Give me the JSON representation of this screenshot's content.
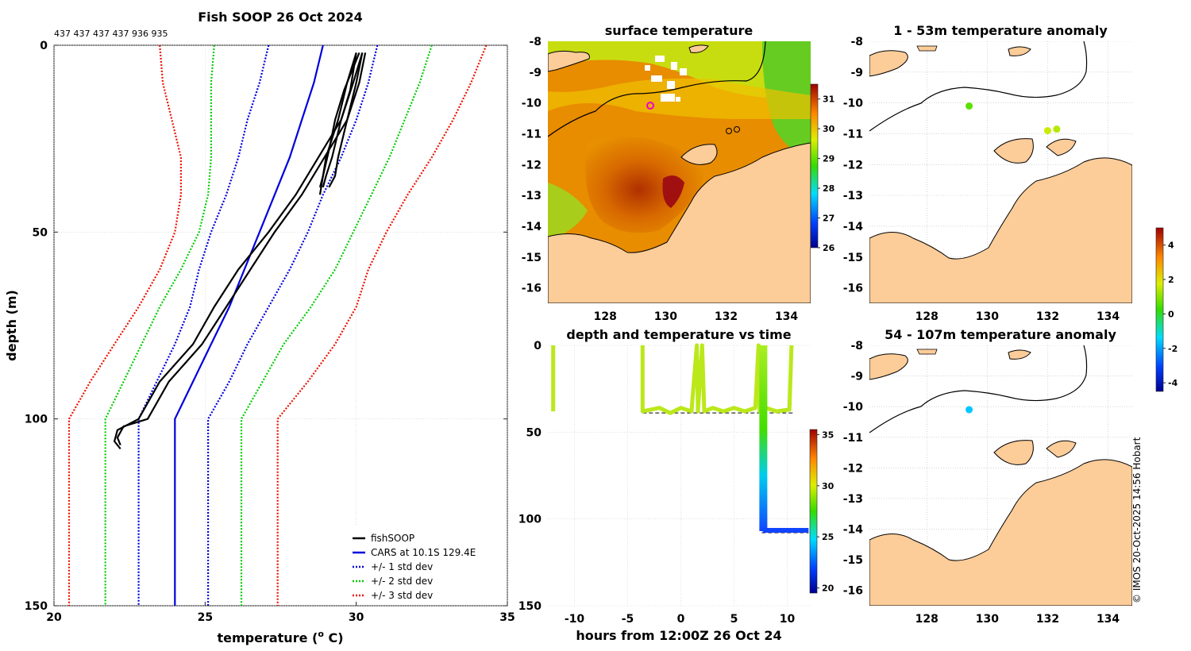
{
  "credit": "© IMOS 20-Oct-2025 14:56 Hobart",
  "chart_data": [
    {
      "type": "line",
      "title": "Fish SOOP 26 Oct 2024",
      "subtitle": "437 437 437 437 936 935",
      "xlabel": "temperature (",
      "xlabel_sup": "o",
      "xlabel_end": " C)",
      "ylabel": "depth (m)",
      "xlim": [
        20,
        35
      ],
      "ylim": [
        0,
        150
      ],
      "xticks": [
        "20",
        "25",
        "30",
        "35"
      ],
      "yticks": [
        "0",
        "50",
        "100",
        "150"
      ],
      "depths": [
        0,
        10,
        20,
        30,
        40,
        50,
        60,
        70,
        80,
        90,
        100,
        150
      ],
      "cars_mean": [
        28.9,
        28.6,
        28.2,
        27.8,
        27.3,
        26.8,
        26.3,
        25.8,
        25.2,
        24.6,
        24.0,
        24.0
      ],
      "std_lines": [
        {
          "name": "+1",
          "color": "#0000dd",
          "values": [
            30.7,
            30.4,
            30.0,
            29.5,
            28.9,
            28.4,
            27.8,
            27.1,
            26.4,
            25.8,
            25.1,
            25.1
          ]
        },
        {
          "name": "-1",
          "color": "#0000dd",
          "values": [
            27.1,
            26.8,
            26.4,
            26.1,
            25.7,
            25.2,
            24.8,
            24.5,
            24.0,
            23.4,
            22.8,
            22.8
          ]
        },
        {
          "name": "+2",
          "color": "#00cc00",
          "values": [
            32.5,
            32.1,
            31.6,
            31.1,
            30.5,
            29.9,
            29.3,
            28.5,
            27.6,
            26.9,
            26.2,
            26.2
          ]
        },
        {
          "name": "-2",
          "color": "#00cc00",
          "values": [
            25.3,
            25.2,
            25.2,
            25.2,
            25.1,
            24.8,
            24.2,
            23.5,
            22.9,
            22.3,
            21.7,
            21.7
          ]
        },
        {
          "name": "+3",
          "color": "#ee1100",
          "values": [
            34.3,
            33.8,
            33.2,
            32.5,
            31.7,
            31.0,
            30.4,
            30.0,
            29.3,
            28.4,
            27.4,
            27.4
          ]
        },
        {
          "name": "-3",
          "color": "#ee1100",
          "values": [
            23.5,
            23.6,
            23.9,
            24.2,
            24.2,
            24.0,
            23.5,
            22.8,
            22.0,
            21.2,
            20.5,
            20.5
          ]
        }
      ],
      "fishsoop_profiles": [
        {
          "depths": [
            2,
            10,
            20,
            30,
            35,
            38
          ],
          "temps": [
            30.2,
            29.9,
            29.5,
            29.2,
            29.0,
            28.9
          ]
        },
        {
          "depths": [
            2,
            10,
            20,
            30,
            35,
            38
          ],
          "temps": [
            30.0,
            29.7,
            29.4,
            29.0,
            28.9,
            28.8
          ]
        },
        {
          "depths": [
            2,
            10,
            20,
            30,
            35,
            38
          ],
          "temps": [
            30.3,
            30.1,
            29.7,
            29.4,
            29.3,
            29.1
          ]
        },
        {
          "depths": [
            2,
            12,
            20,
            28,
            35,
            40
          ],
          "temps": [
            30.1,
            29.6,
            29.3,
            29.1,
            28.9,
            28.8
          ]
        },
        {
          "depths": [
            2,
            10,
            20,
            40,
            50,
            60,
            70,
            80,
            90,
            100,
            102,
            105,
            107
          ],
          "temps": [
            30.2,
            30.0,
            29.7,
            28.2,
            27.3,
            26.5,
            25.7,
            24.9,
            23.8,
            23.1,
            22.3,
            22.1,
            22.2
          ]
        },
        {
          "depths": [
            2,
            12,
            20,
            40,
            50,
            60,
            70,
            80,
            90,
            100,
            103,
            106,
            108
          ],
          "temps": [
            30.0,
            29.8,
            29.5,
            28.0,
            27.1,
            26.1,
            25.3,
            24.6,
            23.5,
            22.8,
            22.1,
            22.0,
            22.2
          ]
        }
      ],
      "legend": [
        {
          "label": "fishSOOP",
          "color": "#000000",
          "style": "solid"
        },
        {
          "label": "CARS at 10.1S 129.4E",
          "color": "#0000dd",
          "style": "solid"
        },
        {
          "label": "+/- 1 std dev",
          "color": "#0000dd",
          "style": "dotted"
        },
        {
          "label": "+/- 2 std dev",
          "color": "#00cc00",
          "style": "dotted"
        },
        {
          "label": "+/- 3 std dev",
          "color": "#ee1100",
          "style": "dotted"
        }
      ]
    },
    {
      "type": "heatmap",
      "title": "surface temperature",
      "xticks": [
        "128",
        "130",
        "132",
        "134"
      ],
      "yticks": [
        "-8",
        "-9",
        "-10",
        "-11",
        "-12",
        "-13",
        "-14",
        "-15",
        "-16"
      ],
      "colorbar_ticks": [
        "31",
        "30",
        "29",
        "28",
        "27",
        "26"
      ],
      "colorbar_range": [
        26,
        31.5
      ],
      "marker": {
        "lon": 129.4,
        "lat": -10.1
      }
    },
    {
      "type": "scatter",
      "title": "1 - 53m temperature anomaly",
      "xticks": [
        "128",
        "130",
        "132",
        "134"
      ],
      "yticks": [
        "-8",
        "-9",
        "-10",
        "-11",
        "-12",
        "-13",
        "-14",
        "-15",
        "-16"
      ],
      "points": [
        {
          "lon": 129.4,
          "lat": -10.1,
          "anomaly": 0.6
        },
        {
          "lon": 132.0,
          "lat": -10.9,
          "anomaly": 1.6
        },
        {
          "lon": 132.3,
          "lat": -10.85,
          "anomaly": 1.4
        }
      ]
    },
    {
      "type": "scatter",
      "title": "54 - 107m temperature anomaly",
      "xticks": [
        "128",
        "130",
        "132",
        "134"
      ],
      "yticks": [
        "-8",
        "-9",
        "-10",
        "-11",
        "-12",
        "-13",
        "-14",
        "-15",
        "-16"
      ],
      "points": [
        {
          "lon": 129.4,
          "lat": -10.1,
          "anomaly": -1.6
        }
      ],
      "colorbar_ticks": [
        "4",
        "2",
        "0",
        "-2",
        "-4"
      ],
      "colorbar_range": [
        -4.5,
        5
      ]
    },
    {
      "type": "scatter",
      "title": "depth and temperature vs time",
      "xlabel": "hours from 12:00Z 26 Oct 24",
      "xticks": [
        "-10",
        "-5",
        "0",
        "5",
        "10"
      ],
      "yticks": [
        "0",
        "50",
        "100",
        "150"
      ],
      "xlim": [
        -12.5,
        12.2
      ],
      "ylim": [
        0,
        150
      ],
      "colorbar_ticks": [
        "35",
        "30",
        "25",
        "20"
      ],
      "colorbar_range": [
        19.5,
        35.5
      ],
      "dashed_depths": [
        38,
        107
      ]
    }
  ]
}
